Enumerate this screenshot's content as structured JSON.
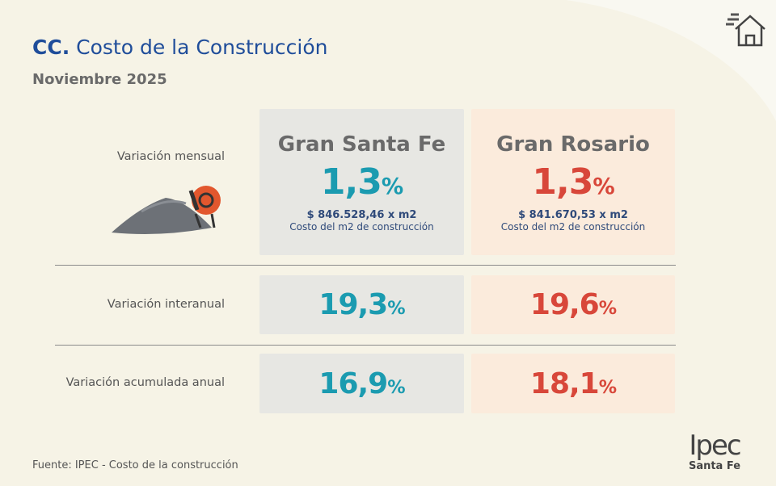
{
  "header": {
    "code": "CC.",
    "title": "Costo de la Construcción",
    "subtitle": "Noviembre 2025"
  },
  "columns": [
    "Gran Santa Fe",
    "Gran Rosario"
  ],
  "rows": [
    {
      "label": "Variación mensual",
      "cells": [
        {
          "value": "1,3",
          "unit": "%",
          "cost": "$ 846.528,46 x m2",
          "cost_label": "Costo del m2 de construcción"
        },
        {
          "value": "1,3",
          "unit": "%",
          "cost": "$ 841.670,53 x m2",
          "cost_label": "Costo del m2 de construcción"
        }
      ]
    },
    {
      "label": "Variación interanual",
      "cells": [
        {
          "value": "19,3",
          "unit": "%"
        },
        {
          "value": "19,6",
          "unit": "%"
        }
      ]
    },
    {
      "label": "Variación acumulada anual",
      "cells": [
        {
          "value": "16,9",
          "unit": "%"
        },
        {
          "value": "18,1",
          "unit": "%"
        }
      ]
    }
  ],
  "footer": {
    "source": "Fuente: IPEC - Costo de la construcción"
  },
  "logo": {
    "name": "Ipec",
    "region": "Santa Fe"
  }
}
